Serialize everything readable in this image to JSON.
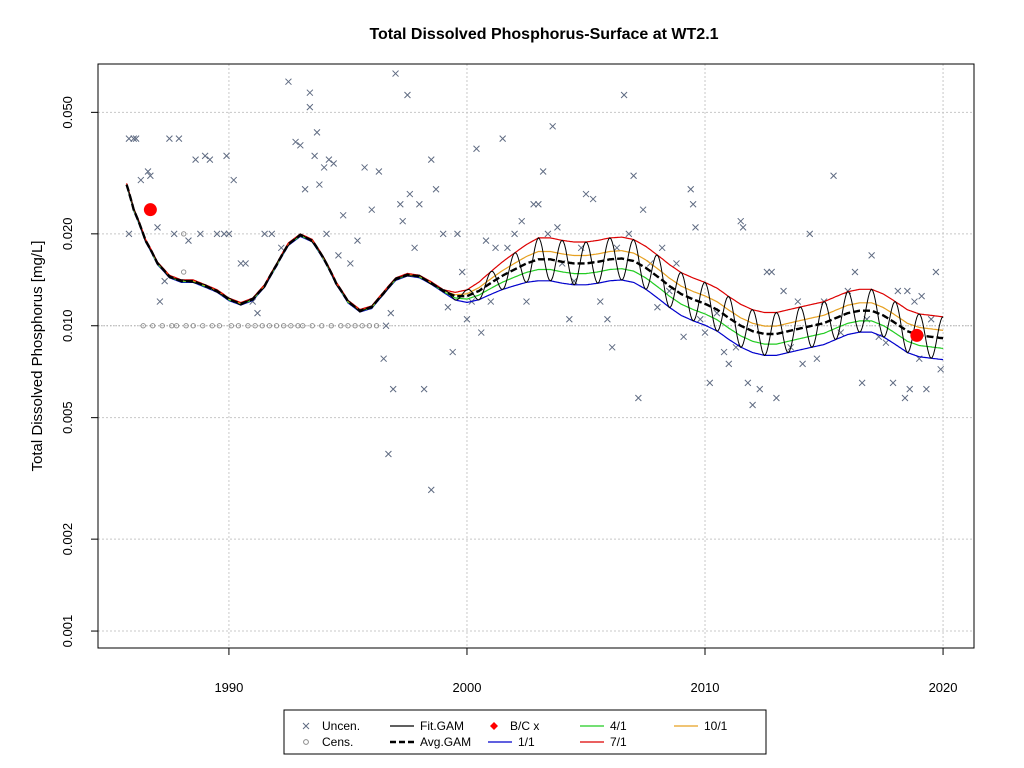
{
  "chart_data": {
    "type": "scatter",
    "title": "Total Dissolved Phosphorus-Surface at WT2.1",
    "ylabel": "Total Dissolved Phosphorus [mg/L]",
    "xlabel": "",
    "y_scale": "log",
    "xlim": [
      1984.5,
      2021.3
    ],
    "ylim": [
      0.00088,
      0.072
    ],
    "x_ticks": [
      1990,
      2000,
      2010,
      2020
    ],
    "x_tick_labels": [
      "1990",
      "2000",
      "2010",
      "2020"
    ],
    "y_ticks": [
      0.001,
      0.002,
      0.005,
      0.01,
      0.02,
      0.05
    ],
    "y_tick_labels": [
      "0.001",
      "0.002",
      "0.005",
      "0.010",
      "0.020",
      "0.050"
    ],
    "grid": true,
    "reference_line": 0.01,
    "legend_position": "bottom",
    "legend": [
      {
        "label": "Uncen.",
        "kind": "cross",
        "color": "#5f6b82"
      },
      {
        "label": "Cens.",
        "kind": "circle",
        "color": "#8a8a8a"
      },
      {
        "label": "Fit.GAM",
        "kind": "line",
        "color": "#000000"
      },
      {
        "label": "Avg.GAM",
        "kind": "dash",
        "color": "#000000"
      },
      {
        "label": "B/C x",
        "kind": "diamond",
        "color": "#ff0000"
      },
      {
        "label": "1/1",
        "kind": "line",
        "color": "#0000cc"
      },
      {
        "label": "4/1",
        "kind": "line",
        "color": "#22cc22"
      },
      {
        "label": "7/1",
        "kind": "line",
        "color": "#dd0000"
      },
      {
        "label": "10/1",
        "kind": "line",
        "color": "#e6a020"
      }
    ],
    "series": [
      {
        "name": "Avg.GAM",
        "x": [
          1985.7,
          1986,
          1986.5,
          1987,
          1987.5,
          1988,
          1988.5,
          1989,
          1989.5,
          1990,
          1990.5,
          1991,
          1991.5,
          1992,
          1992.5,
          1993,
          1993.5,
          1994,
          1994.5,
          1995,
          1995.5,
          1996,
          1996.5,
          1997,
          1997.5,
          1998,
          1998.5,
          1999,
          1999.5,
          2000,
          2000.5,
          2001,
          2001.5,
          2002,
          2002.5,
          2003,
          2003.5,
          2004,
          2004.5,
          2005,
          2005.5,
          2006,
          2006.5,
          2007,
          2007.5,
          2008,
          2008.5,
          2009,
          2009.5,
          2010,
          2010.5,
          2011,
          2011.5,
          2012,
          2012.5,
          2013,
          2013.5,
          2014,
          2014.5,
          2015,
          2015.5,
          2016,
          2016.5,
          2017,
          2017.5,
          2018,
          2018.5,
          2019,
          2019.5,
          2020
        ],
        "y": [
          0.029,
          0.024,
          0.019,
          0.016,
          0.0145,
          0.014,
          0.014,
          0.0135,
          0.013,
          0.0122,
          0.0118,
          0.0122,
          0.0135,
          0.0158,
          0.0185,
          0.0198,
          0.019,
          0.0165,
          0.0138,
          0.012,
          0.0112,
          0.0115,
          0.0128,
          0.0142,
          0.0147,
          0.0145,
          0.0138,
          0.013,
          0.0125,
          0.0125,
          0.013,
          0.0138,
          0.0146,
          0.0153,
          0.016,
          0.0165,
          0.0165,
          0.0162,
          0.016,
          0.016,
          0.0162,
          0.0165,
          0.0166,
          0.0163,
          0.0155,
          0.0145,
          0.0135,
          0.0127,
          0.0122,
          0.0118,
          0.0113,
          0.0106,
          0.01,
          0.0096,
          0.0094,
          0.0094,
          0.0096,
          0.0098,
          0.01,
          0.0102,
          0.0106,
          0.011,
          0.0112,
          0.0112,
          0.0108,
          0.0102,
          0.0096,
          0.0093,
          0.0092,
          0.0091
        ]
      }
    ],
    "bc_points": [
      {
        "x": 1986.7,
        "y": 0.024
      },
      {
        "x": 2018.9,
        "y": 0.0093
      }
    ],
    "uncensored": [
      [
        1985.8,
        0.041
      ],
      [
        1986.0,
        0.041
      ],
      [
        1986.1,
        0.041
      ],
      [
        1985.8,
        0.02
      ],
      [
        1986.3,
        0.03
      ],
      [
        1986.6,
        0.032
      ],
      [
        1986.7,
        0.031
      ],
      [
        1987.0,
        0.021
      ],
      [
        1987.1,
        0.012
      ],
      [
        1987.3,
        0.014
      ],
      [
        1987.5,
        0.041
      ],
      [
        1987.9,
        0.041
      ],
      [
        1987.7,
        0.02
      ],
      [
        1988.3,
        0.019
      ],
      [
        1988.6,
        0.035
      ],
      [
        1988.8,
        0.02
      ],
      [
        1989.0,
        0.036
      ],
      [
        1989.2,
        0.035
      ],
      [
        1989.5,
        0.02
      ],
      [
        1989.8,
        0.02
      ],
      [
        1989.9,
        0.036
      ],
      [
        1990.0,
        0.02
      ],
      [
        1990.2,
        0.03
      ],
      [
        1990.5,
        0.016
      ],
      [
        1990.7,
        0.016
      ],
      [
        1991.0,
        0.012
      ],
      [
        1991.2,
        0.011
      ],
      [
        1991.5,
        0.02
      ],
      [
        1991.8,
        0.02
      ],
      [
        1992.2,
        0.018
      ],
      [
        1992.5,
        0.063
      ],
      [
        1992.8,
        0.04
      ],
      [
        1993.0,
        0.039
      ],
      [
        1993.2,
        0.028
      ],
      [
        1993.4,
        0.058
      ],
      [
        1993.4,
        0.052
      ],
      [
        1993.6,
        0.036
      ],
      [
        1993.8,
        0.029
      ],
      [
        1993.7,
        0.043
      ],
      [
        1994.0,
        0.033
      ],
      [
        1994.2,
        0.035
      ],
      [
        1994.4,
        0.034
      ],
      [
        1994.1,
        0.02
      ],
      [
        1994.6,
        0.017
      ],
      [
        1994.8,
        0.023
      ],
      [
        1995.1,
        0.016
      ],
      [
        1995.4,
        0.019
      ],
      [
        1995.7,
        0.033
      ],
      [
        1996.0,
        0.024
      ],
      [
        1996.3,
        0.032
      ],
      [
        1996.6,
        0.01
      ],
      [
        1996.8,
        0.011
      ],
      [
        1996.5,
        0.0078
      ],
      [
        1996.7,
        0.0038
      ],
      [
        1996.9,
        0.0062
      ],
      [
        1997.0,
        0.067
      ],
      [
        1997.2,
        0.025
      ],
      [
        1997.3,
        0.022
      ],
      [
        1997.5,
        0.057
      ],
      [
        1997.6,
        0.027
      ],
      [
        1997.8,
        0.018
      ],
      [
        1998.0,
        0.025
      ],
      [
        1998.2,
        0.0062
      ],
      [
        1998.5,
        0.035
      ],
      [
        1998.5,
        0.0029
      ],
      [
        1998.7,
        0.028
      ],
      [
        1999.0,
        0.02
      ],
      [
        1999.2,
        0.0115
      ],
      [
        1999.4,
        0.0082
      ],
      [
        1999.6,
        0.02
      ],
      [
        1999.8,
        0.015
      ],
      [
        2000.0,
        0.0105
      ],
      [
        2000.2,
        0.012
      ],
      [
        2000.4,
        0.038
      ],
      [
        2000.6,
        0.0095
      ],
      [
        2000.8,
        0.019
      ],
      [
        2001.0,
        0.012
      ],
      [
        2001.2,
        0.018
      ],
      [
        2001.5,
        0.041
      ],
      [
        2001.7,
        0.018
      ],
      [
        2002.0,
        0.02
      ],
      [
        2002.3,
        0.022
      ],
      [
        2002.5,
        0.012
      ],
      [
        2002.8,
        0.025
      ],
      [
        2003.0,
        0.025
      ],
      [
        2003.2,
        0.032
      ],
      [
        2003.4,
        0.02
      ],
      [
        2003.6,
        0.045
      ],
      [
        2003.8,
        0.021
      ],
      [
        2004.0,
        0.016
      ],
      [
        2004.3,
        0.0105
      ],
      [
        2004.5,
        0.014
      ],
      [
        2004.8,
        0.018
      ],
      [
        2005.0,
        0.027
      ],
      [
        2005.3,
        0.026
      ],
      [
        2005.6,
        0.012
      ],
      [
        2005.9,
        0.0105
      ],
      [
        2006.1,
        0.0085
      ],
      [
        2006.3,
        0.018
      ],
      [
        2006.6,
        0.057
      ],
      [
        2006.8,
        0.02
      ],
      [
        2007.0,
        0.031
      ],
      [
        2007.2,
        0.0058
      ],
      [
        2007.4,
        0.024
      ],
      [
        2007.7,
        0.016
      ],
      [
        2008.0,
        0.0115
      ],
      [
        2008.2,
        0.018
      ],
      [
        2008.5,
        0.013
      ],
      [
        2008.8,
        0.016
      ],
      [
        2009.1,
        0.0092
      ],
      [
        2009.4,
        0.028
      ],
      [
        2009.5,
        0.025
      ],
      [
        2009.6,
        0.021
      ],
      [
        2009.8,
        0.0105
      ],
      [
        2010.0,
        0.0095
      ],
      [
        2010.2,
        0.0065
      ],
      [
        2010.5,
        0.011
      ],
      [
        2010.8,
        0.0082
      ],
      [
        2011.0,
        0.0075
      ],
      [
        2011.3,
        0.0085
      ],
      [
        2011.5,
        0.022
      ],
      [
        2011.6,
        0.021
      ],
      [
        2011.8,
        0.0065
      ],
      [
        2012.0,
        0.0055
      ],
      [
        2012.3,
        0.0062
      ],
      [
        2012.6,
        0.015
      ],
      [
        2012.8,
        0.015
      ],
      [
        2013.0,
        0.0058
      ],
      [
        2013.3,
        0.013
      ],
      [
        2013.6,
        0.0085
      ],
      [
        2013.9,
        0.012
      ],
      [
        2014.1,
        0.0075
      ],
      [
        2014.4,
        0.02
      ],
      [
        2014.7,
        0.0078
      ],
      [
        2015.0,
        0.012
      ],
      [
        2015.4,
        0.031
      ],
      [
        2015.7,
        0.0095
      ],
      [
        2016.0,
        0.013
      ],
      [
        2016.3,
        0.015
      ],
      [
        2016.6,
        0.0065
      ],
      [
        2016.8,
        0.0105
      ],
      [
        2017.0,
        0.017
      ],
      [
        2017.3,
        0.0092
      ],
      [
        2017.6,
        0.0088
      ],
      [
        2017.9,
        0.0065
      ],
      [
        2018.1,
        0.013
      ],
      [
        2018.4,
        0.0058
      ],
      [
        2018.6,
        0.0062
      ],
      [
        2018.8,
        0.012
      ],
      [
        2019.0,
        0.0078
      ],
      [
        2019.3,
        0.0062
      ],
      [
        2019.5,
        0.0105
      ],
      [
        2019.7,
        0.015
      ],
      [
        2019.9,
        0.0072
      ],
      [
        2018.5,
        0.013
      ],
      [
        2019.1,
        0.0125
      ]
    ],
    "censored": [
      [
        1986.4,
        0.01
      ],
      [
        1986.8,
        0.01
      ],
      [
        1987.2,
        0.01
      ],
      [
        1987.6,
        0.01
      ],
      [
        1987.8,
        0.01
      ],
      [
        1988.2,
        0.01
      ],
      [
        1988.5,
        0.01
      ],
      [
        1988.9,
        0.01
      ],
      [
        1989.3,
        0.01
      ],
      [
        1989.6,
        0.01
      ],
      [
        1990.1,
        0.01
      ],
      [
        1990.4,
        0.01
      ],
      [
        1990.8,
        0.01
      ],
      [
        1991.1,
        0.01
      ],
      [
        1991.4,
        0.01
      ],
      [
        1991.7,
        0.01
      ],
      [
        1992.0,
        0.01
      ],
      [
        1992.3,
        0.01
      ],
      [
        1992.6,
        0.01
      ],
      [
        1992.9,
        0.01
      ],
      [
        1993.1,
        0.01
      ],
      [
        1993.5,
        0.01
      ],
      [
        1993.9,
        0.01
      ],
      [
        1994.3,
        0.01
      ],
      [
        1994.7,
        0.01
      ],
      [
        1995.0,
        0.01
      ],
      [
        1995.3,
        0.01
      ],
      [
        1995.6,
        0.01
      ],
      [
        1995.9,
        0.01
      ],
      [
        1996.2,
        0.01
      ],
      [
        1988.1,
        0.02
      ],
      [
        1988.1,
        0.015
      ]
    ]
  }
}
